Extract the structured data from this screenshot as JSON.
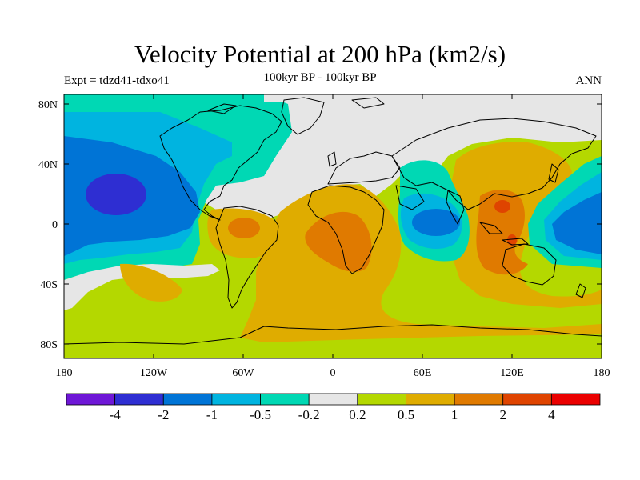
{
  "header": {
    "title": "Velocity Potential at 200 hPa (km2/s)",
    "subtitle": "100kyr BP - 100kyr BP",
    "left": "Expt = tdzd41-tdxo41",
    "right": "ANN"
  },
  "axes": {
    "lon_ticks": [
      "180",
      "120W",
      "60W",
      "0",
      "60E",
      "120E",
      "180"
    ],
    "lat_ticks": [
      "80N",
      "40N",
      "0",
      "40S",
      "80S"
    ]
  },
  "colorbar": {
    "colors": [
      "#6e17d6",
      "#2e2ed2",
      "#0074d6",
      "#00b4e0",
      "#00d8b4",
      "#e6e6e6",
      "#b4d800",
      "#dfac00",
      "#e07a00",
      "#df4400",
      "#ea0000"
    ],
    "labels": [
      "-4",
      "-2",
      "-1",
      "-0.5",
      "-0.2",
      "0.2",
      "0.5",
      "1",
      "2",
      "4"
    ]
  }
}
